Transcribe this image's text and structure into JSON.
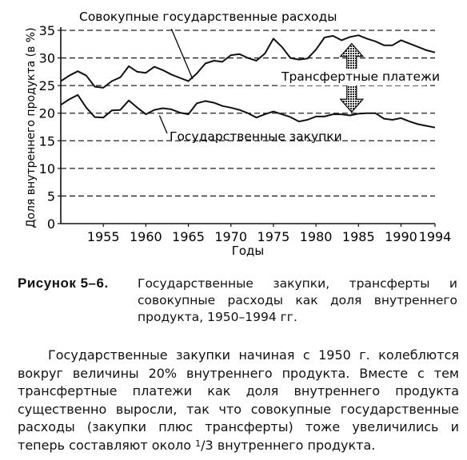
{
  "chart_data": {
    "type": "line",
    "ylabel": "Доля внутреннего продукта (в %)",
    "xlabel": "Годы",
    "xlim": [
      1950,
      1994
    ],
    "ylim": [
      0,
      35
    ],
    "x_ticks": [
      "1955",
      "1960",
      "1965",
      "1970",
      "1975",
      "1980",
      "1985",
      "1990",
      "1994"
    ],
    "x_tick_values": [
      1955,
      1960,
      1965,
      1970,
      1975,
      1980,
      1985,
      1990,
      1994
    ],
    "y_ticks": [
      "0",
      "5",
      "10",
      "15",
      "20",
      "25",
      "30",
      "35"
    ],
    "y_tick_values": [
      0,
      5,
      10,
      15,
      20,
      25,
      30,
      35
    ],
    "grid": "horizontal-dashed",
    "series": [
      {
        "name": "Совокупные государственные расходы",
        "x": [
          1950,
          1951,
          1952,
          1953,
          1954,
          1955,
          1956,
          1957,
          1958,
          1959,
          1960,
          1961,
          1962,
          1963,
          1964,
          1965,
          1966,
          1967,
          1968,
          1969,
          1970,
          1971,
          1972,
          1973,
          1974,
          1975,
          1976,
          1977,
          1978,
          1979,
          1980,
          1981,
          1982,
          1983,
          1984,
          1985,
          1986,
          1987,
          1988,
          1989,
          1990,
          1991,
          1992,
          1993,
          1994
        ],
        "values": [
          25.8,
          26.8,
          27.6,
          26.8,
          24.8,
          24.6,
          25.8,
          26.5,
          28.5,
          27.5,
          27.3,
          28.4,
          27.8,
          27.0,
          26.4,
          25.8,
          27.2,
          29.0,
          29.5,
          29.3,
          30.5,
          30.7,
          30.0,
          29.5,
          30.8,
          33.5,
          32.0,
          30.0,
          29.7,
          29.9,
          31.5,
          33.7,
          34.0,
          33.2,
          33.8,
          34.1,
          33.5,
          33.0,
          32.3,
          32.3,
          33.2,
          32.6,
          32.0,
          31.4,
          31.0
        ]
      },
      {
        "name": "Государственные закупки",
        "x": [
          1950,
          1951,
          1952,
          1953,
          1954,
          1955,
          1956,
          1957,
          1958,
          1959,
          1960,
          1961,
          1962,
          1963,
          1964,
          1965,
          1966,
          1967,
          1968,
          1969,
          1970,
          1971,
          1972,
          1973,
          1974,
          1975,
          1976,
          1977,
          1978,
          1979,
          1980,
          1981,
          1982,
          1983,
          1984,
          1985,
          1986,
          1987,
          1988,
          1989,
          1990,
          1991,
          1992,
          1993,
          1994
        ],
        "values": [
          21.5,
          22.5,
          23.3,
          21.0,
          19.3,
          19.2,
          20.5,
          20.6,
          22.3,
          21.0,
          19.8,
          20.6,
          20.9,
          20.7,
          20.1,
          19.8,
          21.8,
          22.2,
          21.9,
          21.3,
          21.0,
          20.6,
          20.0,
          19.2,
          19.8,
          20.3,
          19.8,
          19.3,
          18.5,
          18.8,
          19.4,
          19.4,
          19.8,
          19.8,
          19.6,
          19.9,
          20.0,
          20.0,
          19.0,
          18.8,
          19.1,
          18.5,
          18.0,
          17.7,
          17.4
        ]
      }
    ],
    "annotations": [
      "Трансфертные платежи"
    ]
  },
  "caption": {
    "label": "Рисунок 5–6.",
    "text": "Государственные закупки, трансферты и совокупные расходы как доля внутреннего продукта, 1950–1994 гг."
  },
  "body": {
    "text_before_fraction": "Государственные закупки начиная с 1950 г. колеблются вокруг величины 20% внутреннего продукта. Вместе с тем трансфертные платежи как доля внутреннего продукта существенно выросли, так что совокупные государственные расходы (закупки плюс трансферты) тоже увеличились и теперь составляют около ",
    "fraction_numerator": "1",
    "fraction_denominator": "3",
    "text_after_fraction": " внутреннего продукта."
  }
}
